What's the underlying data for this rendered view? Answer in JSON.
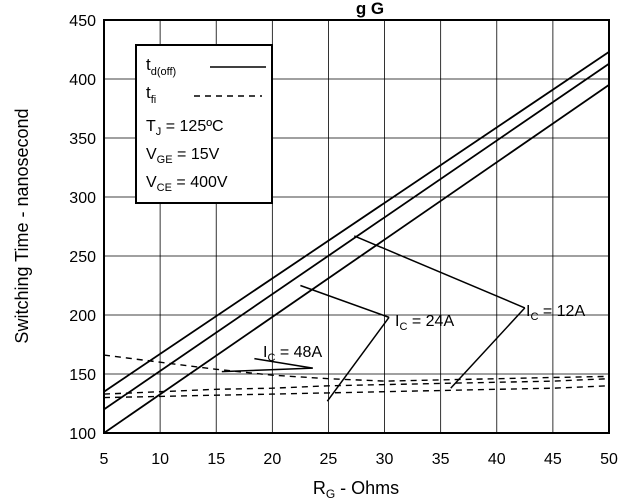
{
  "chart_data": {
    "type": "line",
    "title": "g G",
    "xlabel": {
      "main": "R",
      "sub": "G",
      "suffix": " - Ohms"
    },
    "ylabel": "Switching Time - nanosecond",
    "xlim": [
      5,
      50
    ],
    "ylim": [
      100,
      450
    ],
    "x_ticks": [
      "5",
      "10",
      "15",
      "20",
      "25",
      "30",
      "35",
      "40",
      "45",
      "50"
    ],
    "y_ticks": [
      "100",
      "150",
      "200",
      "250",
      "300",
      "350",
      "400",
      "450"
    ],
    "grid": true,
    "legend": {
      "placement": "top-left",
      "td_label": {
        "main": "t",
        "sub": "d(off)"
      },
      "tf_label": {
        "main": "t",
        "sub": "fi"
      },
      "conditions": [
        {
          "main": "T",
          "sub": "J",
          "rest": " = 125ºC"
        },
        {
          "main": "V",
          "sub": "GE",
          "rest": " = 15V"
        },
        {
          "main": "V",
          "sub": "CE",
          "rest": " = 400V"
        }
      ]
    },
    "annotations": [
      {
        "main": "I",
        "sub": "C",
        "rest": " = 12A"
      },
      {
        "main": "I",
        "sub": "C",
        "rest": " = 24A"
      },
      {
        "main": "I",
        "sub": "C",
        "rest": " = 48A"
      }
    ],
    "series": [
      {
        "group": "td(off)",
        "current": "12A",
        "style": "solid",
        "x": [
          5,
          50
        ],
        "y": [
          135,
          423
        ]
      },
      {
        "group": "td(off)",
        "current": "24A",
        "style": "solid",
        "x": [
          5,
          50
        ],
        "y": [
          120,
          413
        ]
      },
      {
        "group": "td(off)",
        "current": "48A",
        "style": "solid",
        "x": [
          5,
          50
        ],
        "y": [
          100,
          395
        ]
      },
      {
        "group": "tfi",
        "current": "12A",
        "style": "dashed",
        "x": [
          5,
          10,
          15,
          20,
          25,
          30,
          35,
          40,
          45,
          50
        ],
        "y": [
          133,
          135,
          137,
          138,
          140,
          141,
          142,
          143,
          144,
          146
        ]
      },
      {
        "group": "tfi",
        "current": "24A",
        "style": "dashed",
        "x": [
          5,
          10,
          15,
          20,
          25,
          30,
          35,
          40,
          45,
          50
        ],
        "y": [
          130,
          131,
          132,
          133,
          134,
          135,
          136,
          137,
          138,
          140
        ]
      },
      {
        "group": "tfi",
        "current": "48A",
        "style": "dashed",
        "x": [
          5,
          10,
          15,
          20,
          25,
          30,
          35,
          40,
          45,
          50
        ],
        "y": [
          166,
          160,
          154,
          149,
          146,
          144,
          145,
          146,
          147,
          148
        ]
      }
    ]
  }
}
